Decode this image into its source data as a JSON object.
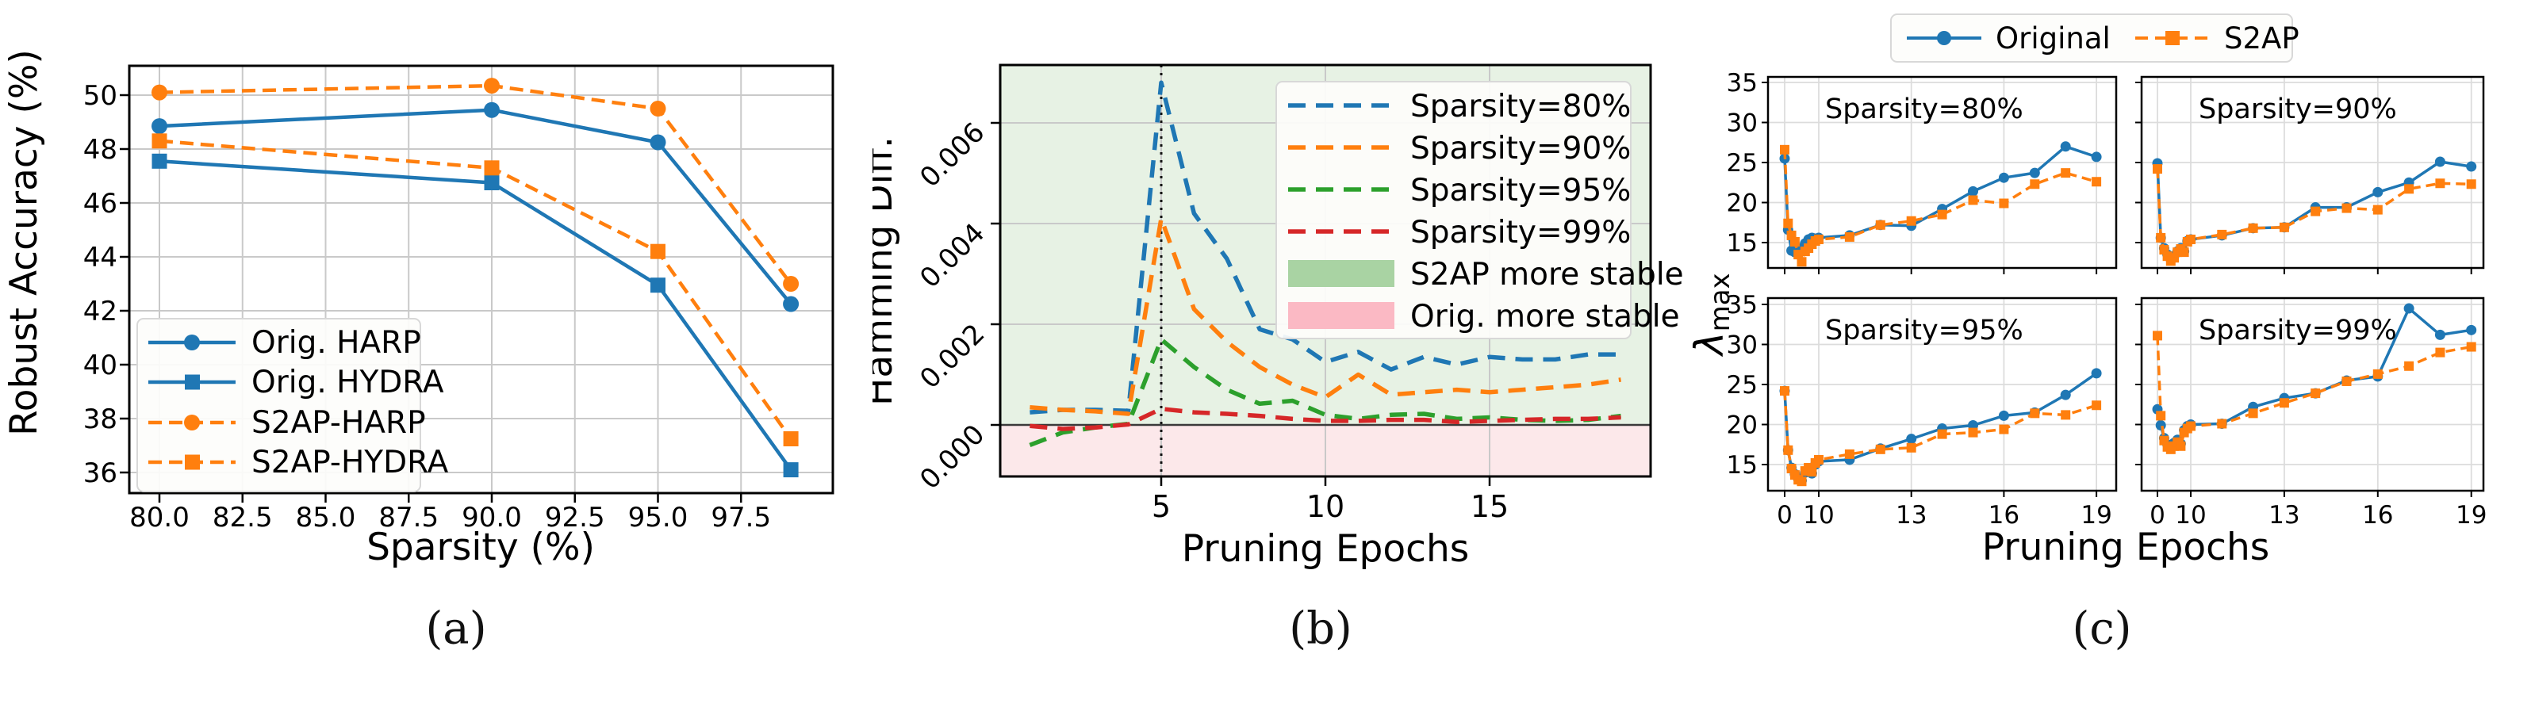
{
  "figure": {
    "captions": {
      "a": "(a)",
      "b": "(b)",
      "c": "(c)"
    }
  },
  "colors": {
    "blue": "#1f77b4",
    "orange": "#ff7f0e",
    "green": "#2ca02c",
    "red": "#d62728",
    "grid": "#c9c9c9",
    "spine": "#000000",
    "zero_line": "#3a3a3a",
    "dotted_guide": "#111111",
    "stable_green_bg": "#e7f2e4",
    "stable_pink_bg": "#fce8ea",
    "legend_green_patch": "#a9d3a3",
    "legend_pink_patch": "#fbb9c4",
    "legend_bg": "#fdfdfb",
    "legend_border": "#d8d8d8"
  },
  "chart_data": [
    {
      "id": "a",
      "type": "line",
      "xlabel": "Sparsity (%)",
      "ylabel": "Robust Accuracy (%)",
      "x": [
        80,
        90,
        95,
        99
      ],
      "xticks": {
        "values": [
          80,
          82.5,
          85,
          87.5,
          90,
          92.5,
          95,
          97.5
        ],
        "labels": [
          "80.0",
          "82.5",
          "85.0",
          "87.5",
          "90.0",
          "92.5",
          "95.0",
          "97.5"
        ]
      },
      "yticks": {
        "values": [
          36,
          38,
          40,
          42,
          44,
          46,
          48,
          50
        ],
        "labels": [
          "36",
          "38",
          "40",
          "42",
          "44",
          "46",
          "48",
          "50"
        ]
      },
      "xlim": [
        79.1,
        100.3
      ],
      "ylim": [
        35.2,
        51.1
      ],
      "grid": true,
      "legend_position": "lower left",
      "series": [
        {
          "name": "Orig. HARP",
          "color": "blue",
          "line": "solid",
          "marker": "circle",
          "values": [
            48.85,
            49.45,
            48.25,
            42.25
          ]
        },
        {
          "name": "Orig. HYDRA",
          "color": "blue",
          "line": "solid",
          "marker": "square",
          "values": [
            47.55,
            46.75,
            42.95,
            36.1
          ]
        },
        {
          "name": "S2AP-HARP",
          "color": "orange",
          "line": "dashed",
          "marker": "circle",
          "values": [
            50.1,
            50.35,
            49.5,
            43.0
          ]
        },
        {
          "name": "S2AP-HYDRA",
          "color": "orange",
          "line": "dashed",
          "marker": "square",
          "values": [
            48.3,
            47.3,
            44.2,
            37.25
          ]
        }
      ]
    },
    {
      "id": "b",
      "type": "line",
      "xlabel": "Pruning Epochs",
      "ylabel": "Hamming Diff.",
      "x": [
        1,
        2,
        3,
        4,
        5,
        6,
        7,
        8,
        9,
        10,
        11,
        12,
        13,
        14,
        15,
        16,
        17,
        18,
        19
      ],
      "xticks": {
        "values": [
          5,
          10,
          15
        ],
        "labels": [
          "5",
          "10",
          "15"
        ]
      },
      "yticks": {
        "values": [
          0,
          0.002,
          0.004,
          0.006
        ],
        "labels": [
          "0.000",
          "0.002",
          "0.004",
          "0.006"
        ],
        "rotation_deg": 45
      },
      "xlim": [
        0.1,
        19.9
      ],
      "ylim": [
        -0.00102,
        0.00715
      ],
      "grid": true,
      "vline_at_x": 5,
      "regions": [
        {
          "name": "S2AP more stable",
          "side": "above_zero",
          "color": "stable_green_bg",
          "legend_patch": "legend_green_patch"
        },
        {
          "name": "Orig. more stable",
          "side": "below_zero",
          "color": "stable_pink_bg",
          "legend_patch": "legend_pink_patch"
        }
      ],
      "series": [
        {
          "name": "Sparsity=80%",
          "color": "blue",
          "line": "dashed",
          "values": [
            0.00025,
            0.0003,
            0.0003,
            0.00028,
            0.0068,
            0.0042,
            0.0033,
            0.0019,
            0.0017,
            0.00125,
            0.00145,
            0.0011,
            0.00135,
            0.0012,
            0.00135,
            0.0013,
            0.0013,
            0.0014,
            0.0014
          ]
        },
        {
          "name": "Sparsity=90%",
          "color": "orange",
          "line": "dashed",
          "values": [
            0.00035,
            0.0003,
            0.00027,
            0.00022,
            0.0041,
            0.0023,
            0.00165,
            0.00115,
            0.0008,
            0.00055,
            0.001,
            0.0006,
            0.00065,
            0.0007,
            0.00065,
            0.0007,
            0.00075,
            0.0008,
            0.0009
          ]
        },
        {
          "name": "Sparsity=95%",
          "color": "green",
          "line": "dashed",
          "values": [
            -0.0004,
            -0.00015,
            -5e-05,
            2e-05,
            0.0017,
            0.00115,
            0.0007,
            0.00042,
            0.00048,
            0.0002,
            0.00012,
            0.0002,
            0.00022,
            0.00012,
            0.00015,
            0.0001,
            8e-05,
            0.0001,
            0.00018
          ]
        },
        {
          "name": "Sparsity=99%",
          "color": "red",
          "line": "dashed",
          "values": [
            -2e-05,
            -8e-05,
            -5e-05,
            1e-05,
            0.00032,
            0.00025,
            0.00022,
            0.00018,
            0.00012,
            8e-05,
            8e-05,
            0.0001,
            0.0001,
            6e-05,
            8e-05,
            0.0001,
            0.00012,
            0.00012,
            0.00015
          ]
        }
      ]
    },
    {
      "id": "c",
      "type": "small-multiples",
      "xlabel": "Pruning Epochs",
      "ylabel": "λmax",
      "ylabel_base": "λ",
      "ylabel_sub": "max",
      "x_epochs": [
        0,
        1,
        2,
        3,
        4,
        5,
        6,
        7,
        8,
        9,
        10,
        11,
        12,
        13,
        14,
        15,
        16,
        17,
        18,
        19
      ],
      "x_axis_note": "epochs 0-10 compressed near origin",
      "xticks": {
        "values": [
          0,
          10,
          13,
          16,
          19
        ],
        "labels": [
          "0",
          "10",
          "13",
          "16",
          "19"
        ]
      },
      "yticks": {
        "values": [
          15,
          20,
          25,
          30,
          35
        ],
        "labels": [
          "15",
          "20",
          "25",
          "30",
          "35"
        ]
      },
      "legend": [
        {
          "name": "Original",
          "color": "blue",
          "line": "solid",
          "marker": "circle"
        },
        {
          "name": "S2AP",
          "color": "orange",
          "line": "dashed",
          "marker": "square"
        }
      ],
      "subplots": [
        {
          "annotation": "Sparsity=80%",
          "original": [
            25.5,
            16.6,
            14.0,
            13.8,
            13.6,
            14.3,
            14.9,
            15.4,
            15.6,
            15.5,
            15.6,
            15.9,
            17.2,
            17.1,
            19.2,
            21.4,
            23.1,
            23.7,
            27.0,
            25.7
          ],
          "s2ap": [
            26.6,
            17.4,
            15.9,
            15.1,
            13.5,
            12.6,
            13.9,
            14.3,
            14.8,
            15.2,
            15.4,
            15.7,
            17.2,
            17.7,
            18.5,
            20.3,
            19.9,
            22.3,
            23.7,
            22.6
          ]
        },
        {
          "annotation": "Sparsity=90%",
          "original": [
            24.9,
            15.6,
            14.3,
            13.5,
            12.9,
            13.3,
            13.9,
            14.3,
            13.9,
            15.2,
            15.4,
            15.9,
            16.8,
            16.9,
            19.4,
            19.4,
            21.3,
            22.5,
            25.1,
            24.5
          ],
          "s2ap": [
            24.2,
            15.6,
            14.1,
            13.3,
            12.7,
            13.1,
            13.8,
            14.2,
            13.8,
            15.1,
            15.4,
            16.0,
            16.8,
            16.9,
            18.9,
            19.3,
            19.1,
            21.7,
            22.4,
            22.3
          ]
        },
        {
          "annotation": "Sparsity=95%",
          "original": [
            24.2,
            16.8,
            14.6,
            13.8,
            13.2,
            13.0,
            14.0,
            14.4,
            13.9,
            15.0,
            15.4,
            15.6,
            17.0,
            18.2,
            19.5,
            19.9,
            21.1,
            21.5,
            23.7,
            26.4
          ],
          "s2ap": [
            24.2,
            16.8,
            14.5,
            13.7,
            13.1,
            12.9,
            14.2,
            14.6,
            14.1,
            15.2,
            15.6,
            16.3,
            16.9,
            17.1,
            18.8,
            19.0,
            19.4,
            21.4,
            21.2,
            22.4
          ]
        },
        {
          "annotation": "Sparsity=99%",
          "original": [
            21.9,
            19.9,
            18.3,
            17.5,
            17.3,
            17.7,
            18.1,
            17.6,
            19.3,
            19.8,
            20.0,
            20.1,
            22.2,
            23.3,
            23.9,
            25.5,
            26.0,
            34.5,
            31.2,
            31.8
          ],
          "s2ap": [
            31.1,
            21.1,
            18.0,
            17.2,
            16.9,
            17.3,
            17.8,
            17.3,
            19.0,
            19.5,
            19.8,
            20.1,
            21.4,
            22.7,
            23.9,
            25.4,
            26.3,
            27.3,
            29.0,
            29.7
          ]
        }
      ]
    }
  ]
}
